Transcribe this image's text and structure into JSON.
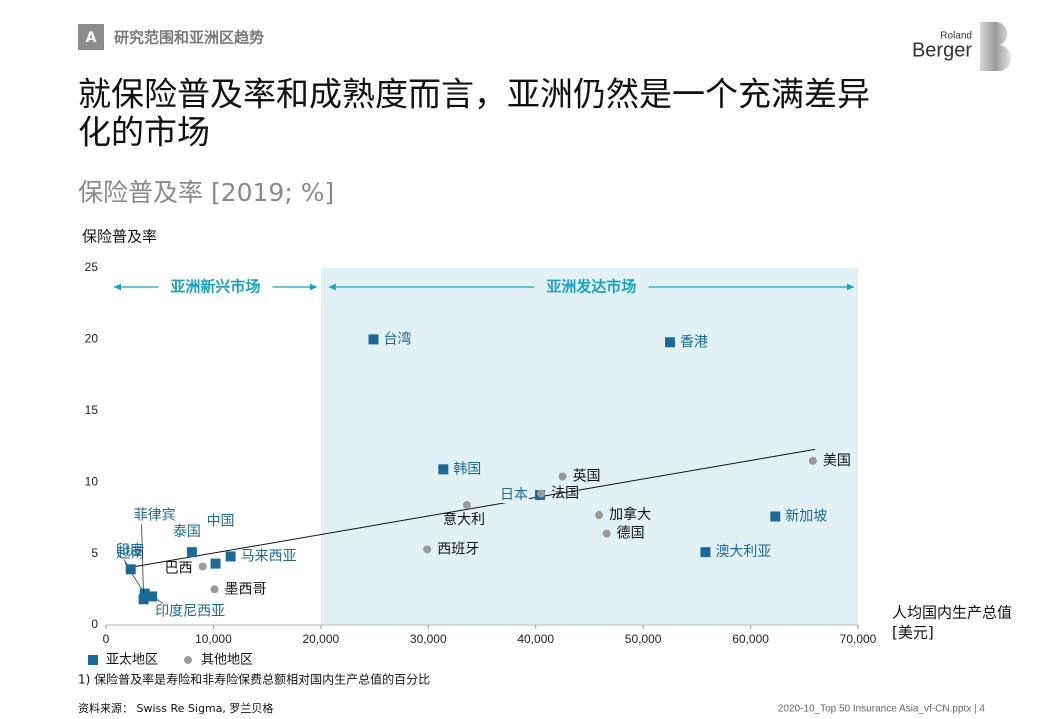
{
  "header": {
    "badge": "A",
    "section": "研究范围和亚洲区趋势",
    "logo_top": "Roland",
    "logo_main": "Berger"
  },
  "title": [
    "就保险普及率和成熟度而言，亚洲仍然是一个充满差异",
    "化的市场"
  ],
  "subtitle": "保险普及率 [2019; %]",
  "chart_data": {
    "type": "scatter",
    "y_label": "保险普及率",
    "x_label": [
      "人均国内生产总值",
      "[美元]"
    ],
    "xlim": [
      0,
      70000
    ],
    "xticks": [
      0,
      {
        "value": 10000,
        "label": "10,000"
      },
      {
        "value": 20000,
        "label": "20,000"
      },
      {
        "value": 30000,
        "label": "30,000"
      },
      {
        "value": 40000,
        "label": "40,000"
      },
      {
        "value": 50000,
        "label": "50,000"
      },
      {
        "value": 60000,
        "label": "60,000"
      },
      {
        "value": 70000,
        "label": "70,000"
      }
    ],
    "ylim": [
      0,
      25
    ],
    "yticks": [
      0,
      5,
      10,
      15,
      20,
      25
    ],
    "regions": [
      {
        "label": "亚洲新兴市场",
        "x": [
          0,
          20000
        ],
        "shaded": false
      },
      {
        "label": "亚洲发达市场",
        "x": [
          20000,
          70000
        ],
        "shaded": true
      }
    ],
    "trendline": {
      "x": [
        2000,
        66000
      ],
      "y": [
        4,
        12.3
      ]
    },
    "series": [
      {
        "name": "亚太地区",
        "color": "#1c6a99",
        "marker": "square",
        "labels": [
          "台湾",
          "香港",
          "韩国",
          "日本",
          "新加坡",
          "澳大利亚",
          "中国",
          "马来西亚",
          "泰国",
          "越南",
          "菲律宾",
          "印度",
          "印度尼西亚"
        ],
        "x": [
          24900,
          52500,
          31400,
          40400,
          62300,
          55800,
          10200,
          11600,
          8000,
          3600,
          3500,
          2300,
          4300
        ],
        "values": [
          20.0,
          19.8,
          10.9,
          9.1,
          7.6,
          5.1,
          4.3,
          4.8,
          5.1,
          2.2,
          1.8,
          3.9,
          2.0
        ]
      },
      {
        "name": "其他地区",
        "color": "#9a9a9a",
        "marker": "circle",
        "labels": [
          "美国",
          "英国",
          "法国",
          "加拿大",
          "德国",
          "意大利",
          "西班牙",
          "巴西",
          "墨西哥"
        ],
        "x": [
          65800,
          42500,
          40500,
          45900,
          46600,
          33600,
          29900,
          9000,
          10100
        ],
        "values": [
          11.5,
          10.4,
          9.2,
          7.7,
          6.4,
          8.4,
          5.3,
          4.1,
          2.5
        ]
      }
    ]
  },
  "footnote": "1) 保险普及率是寿险和非寿险保费总额相对国内生产总值的百分比",
  "source": "资料来源： Swiss Re Sigma, 罗兰贝格",
  "footer": "2020-10_Top 50 Insurance Asia_vf-CN.pptx | 4"
}
